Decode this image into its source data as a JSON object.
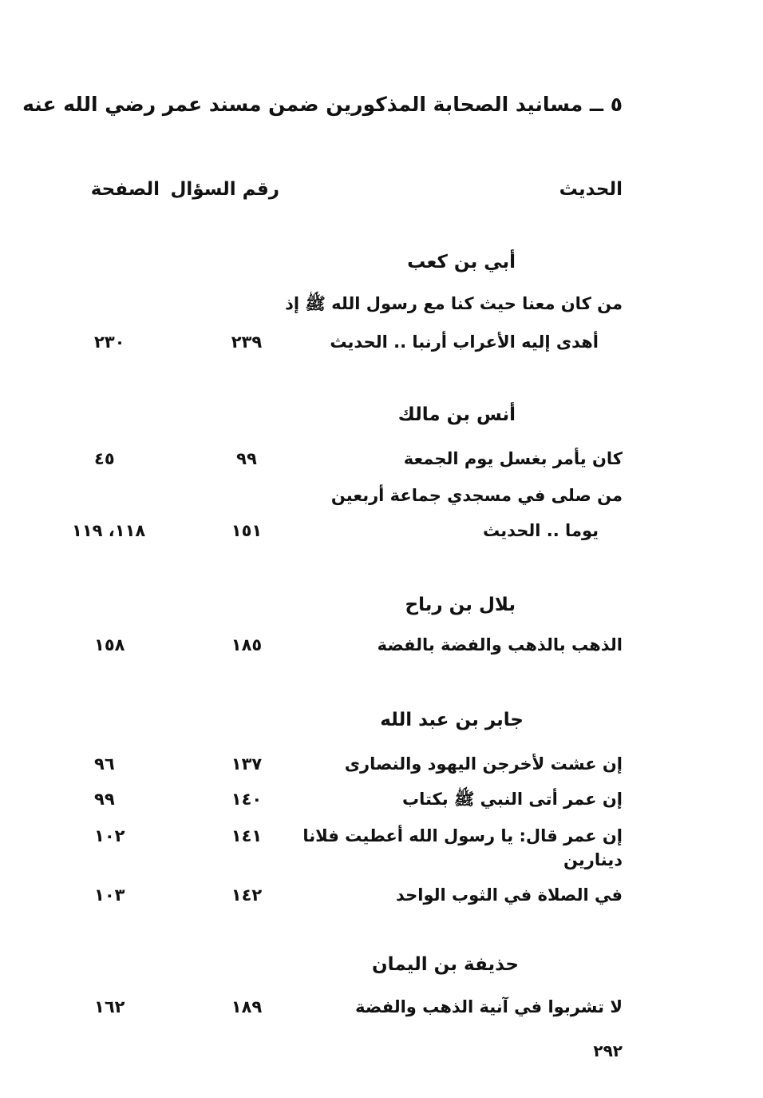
{
  "title": "٥ ــ مسانيد الصحابة المذكورين ضمن مسند عمر رضي الله عنه",
  "headers": {
    "hadith": "الحديث",
    "question_no": "رقم السؤال",
    "page": "الصفحة"
  },
  "sections": [
    {
      "name": "أبي بن كعب",
      "entries": [
        {
          "lines": [
            "من كان معنا حيث كنا مع رسول الله ﷺ إذ",
            "أهدى إليه الأعراب أرنبا .. الحديث"
          ],
          "question": "٢٣٩",
          "page": "٢٣٠"
        }
      ]
    },
    {
      "name": "أنس بن مالك",
      "entries": [
        {
          "lines": [
            "كان يأمر بغسل يوم الجمعة"
          ],
          "question": "٩٩",
          "page": "٤٥"
        },
        {
          "lines": [
            "من صلى في مسجدي جماعة أربعين",
            "يوما .. الحديث"
          ],
          "question": "١٥١",
          "page": "١١٨، ١١٩"
        }
      ]
    },
    {
      "name": "بلال بن رباح",
      "entries": [
        {
          "lines": [
            "الذهب بالذهب والفضة بالفضة"
          ],
          "question": "١٨٥",
          "page": "١٥٨"
        }
      ]
    },
    {
      "name": "جابر بن عبد الله",
      "entries": [
        {
          "lines": [
            "إن عشت لأخرجن اليهود والنصارى"
          ],
          "question": "١٣٧",
          "page": "٩٦"
        },
        {
          "lines": [
            "إن عمر أتى النبي ﷺ بكتاب"
          ],
          "question": "١٤٠",
          "page": "٩٩"
        },
        {
          "lines": [
            "إن عمر قال: يا رسول الله أعطيت فلانا دينارين"
          ],
          "question": "١٤١",
          "page": "١٠٢"
        },
        {
          "lines": [
            "في الصلاة في الثوب الواحد"
          ],
          "question": "١٤٢",
          "page": "١٠٣"
        }
      ]
    },
    {
      "name": "حذيفة بن اليمان",
      "entries": [
        {
          "lines": [
            "لا تشربوا في آنية الذهب والفضة"
          ],
          "question": "١٨٩",
          "page": "١٦٢"
        }
      ]
    }
  ],
  "page_number": "٢٩٢"
}
